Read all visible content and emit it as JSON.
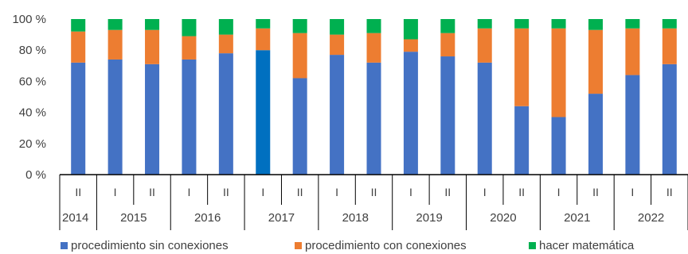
{
  "chart_data": {
    "type": "bar",
    "stacked": true,
    "y_tick_labels": [
      "0 %",
      "20 %",
      "40 %",
      "60 %",
      "80 %",
      "100 %"
    ],
    "ylim": [
      0,
      100
    ],
    "categories": [
      {
        "semester": "II",
        "year": "2014"
      },
      {
        "semester": "I",
        "year": "2015"
      },
      {
        "semester": "II",
        "year": "2015"
      },
      {
        "semester": "I",
        "year": "2016"
      },
      {
        "semester": "II",
        "year": "2016"
      },
      {
        "semester": "I",
        "year": "2017"
      },
      {
        "semester": "II",
        "year": "2017"
      },
      {
        "semester": "I",
        "year": "2018"
      },
      {
        "semester": "II",
        "year": "2018"
      },
      {
        "semester": "I",
        "year": "2019"
      },
      {
        "semester": "II",
        "year": "2019"
      },
      {
        "semester": "I",
        "year": "2020"
      },
      {
        "semester": "II",
        "year": "2020"
      },
      {
        "semester": "I",
        "year": "2021"
      },
      {
        "semester": "II",
        "year": "2021"
      },
      {
        "semester": "I",
        "year": "2022"
      },
      {
        "semester": "II",
        "year": "2022"
      }
    ],
    "years": [
      "2014",
      "2015",
      "2016",
      "2017",
      "2018",
      "2019",
      "2020",
      "2021",
      "2022"
    ],
    "series": [
      {
        "name": "procedimiento sin conexiones",
        "color": "#4472C4",
        "values": [
          72,
          74,
          71,
          74,
          78,
          80,
          62,
          77,
          72,
          79,
          76,
          72,
          44,
          37,
          52,
          64,
          71
        ]
      },
      {
        "name": "procedimiento con conexiones",
        "color": "#ED7D31",
        "values": [
          20,
          19,
          22,
          15,
          12,
          14,
          29,
          13,
          19,
          8,
          15,
          22,
          50,
          57,
          41,
          30,
          23
        ]
      },
      {
        "name": "hacer matemática",
        "color": "#00B050",
        "values": [
          8,
          7,
          7,
          11,
          10,
          6,
          9,
          10,
          9,
          13,
          9,
          6,
          6,
          6,
          7,
          6,
          6
        ]
      }
    ],
    "highlight": {
      "index": 5,
      "color": "#0070C0"
    },
    "grid": false,
    "legend_position": "bottom"
  }
}
